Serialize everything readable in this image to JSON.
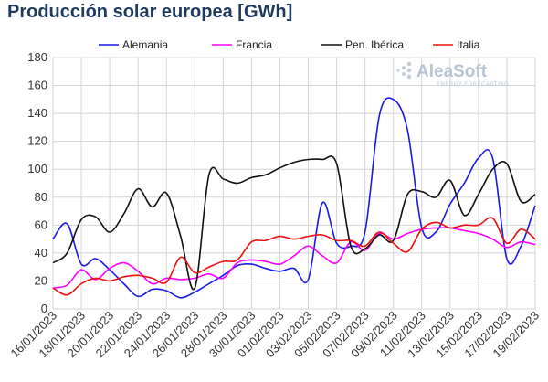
{
  "chart_data": {
    "type": "line",
    "title": "Producción solar europea [GWh]",
    "xlabel": "",
    "ylabel": "",
    "ylim": [
      0,
      180
    ],
    "yticks": [
      0,
      20,
      40,
      60,
      80,
      100,
      120,
      140,
      160,
      180
    ],
    "grid": true,
    "legend_position": "top",
    "x_tick_labels": [
      "16/01/2023",
      "18/01/2023",
      "20/01/2023",
      "22/01/2023",
      "24/01/2023",
      "26/01/2023",
      "28/01/2023",
      "30/01/2023",
      "01/02/2023",
      "03/02/2023",
      "05/02/2023",
      "07/02/2023",
      "09/02/2023",
      "11/02/2023",
      "13/02/2023",
      "15/02/2023",
      "17/02/2023",
      "19/02/2023"
    ],
    "x": [
      "16/01/2023",
      "17/01/2023",
      "18/01/2023",
      "19/01/2023",
      "20/01/2023",
      "21/01/2023",
      "22/01/2023",
      "23/01/2023",
      "24/01/2023",
      "25/01/2023",
      "26/01/2023",
      "27/01/2023",
      "28/01/2023",
      "29/01/2023",
      "30/01/2023",
      "31/01/2023",
      "01/02/2023",
      "02/02/2023",
      "03/02/2023",
      "04/02/2023",
      "05/02/2023",
      "06/02/2023",
      "07/02/2023",
      "08/02/2023",
      "09/02/2023",
      "10/02/2023",
      "11/02/2023",
      "12/02/2023",
      "13/02/2023",
      "14/02/2023",
      "15/02/2023",
      "16/02/2023",
      "17/02/2023",
      "18/02/2023",
      "19/02/2023"
    ],
    "series": [
      {
        "name": "Alemania",
        "color": "#1a1ae6",
        "values": [
          50,
          61,
          32,
          36,
          28,
          18,
          9,
          14,
          13,
          8,
          12,
          18,
          24,
          31,
          32,
          29,
          27,
          29,
          21,
          76,
          47,
          45,
          55,
          138,
          150,
          128,
          58,
          55,
          75,
          90,
          108,
          108,
          36,
          45,
          74
        ]
      },
      {
        "name": "Francia",
        "color": "#ff00ff",
        "values": [
          15,
          17,
          28,
          21,
          29,
          33,
          27,
          18,
          22,
          21,
          22,
          25,
          22,
          33,
          35,
          34,
          32,
          38,
          45,
          38,
          33,
          48,
          42,
          54,
          50,
          54,
          57,
          58,
          58,
          56,
          54,
          50,
          44,
          48,
          46
        ]
      },
      {
        "name": "Pen. Ibérica",
        "color": "#111111",
        "values": [
          33,
          40,
          64,
          66,
          55,
          68,
          86,
          73,
          83,
          52,
          15,
          96,
          93,
          90,
          94,
          96,
          101,
          105,
          107,
          107,
          104,
          45,
          43,
          53,
          49,
          82,
          84,
          80,
          92,
          67,
          82,
          100,
          104,
          77,
          82
        ]
      },
      {
        "name": "Italia",
        "color": "#ee1111",
        "values": [
          15,
          10,
          18,
          22,
          20,
          23,
          24,
          22,
          19,
          37,
          26,
          30,
          34,
          35,
          48,
          49,
          52,
          50,
          52,
          53,
          49,
          49,
          45,
          55,
          47,
          41,
          57,
          62,
          58,
          60,
          60,
          65,
          47,
          57,
          50
        ]
      }
    ]
  },
  "logo": {
    "name": "AleaSoft",
    "tagline": "ENERGY FORECASTING"
  }
}
